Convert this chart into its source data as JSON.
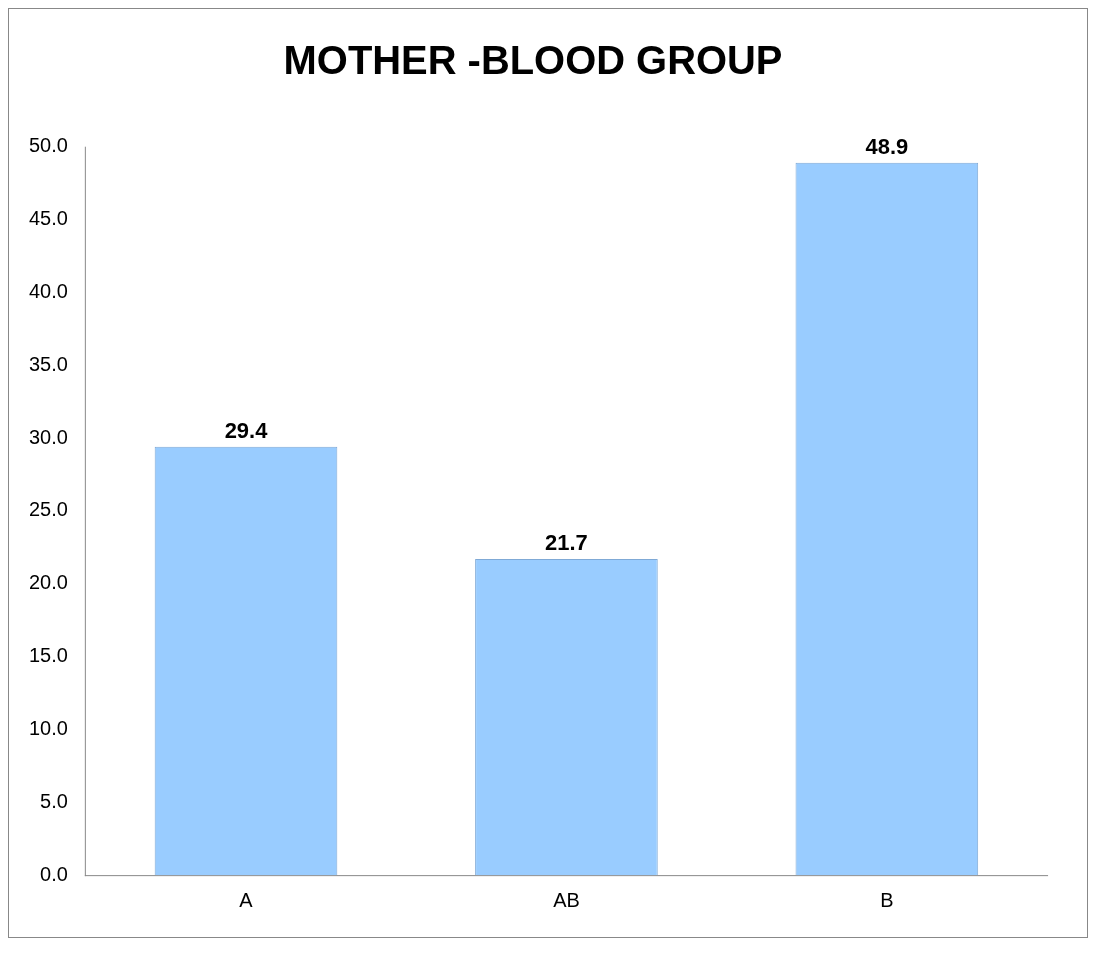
{
  "chart_data": {
    "type": "bar",
    "title": "MOTHER -BLOOD GROUP",
    "categories": [
      "A",
      "AB",
      "B"
    ],
    "values": [
      29.4,
      21.7,
      48.9
    ],
    "color": "#99ccff",
    "ylim": [
      0,
      50
    ],
    "yticks": [
      {
        "value": 0,
        "label": "0.0"
      },
      {
        "value": 5,
        "label": "5.0"
      },
      {
        "value": 10,
        "label": "10.0"
      },
      {
        "value": 15,
        "label": "15.0"
      },
      {
        "value": 20,
        "label": "20.0"
      },
      {
        "value": 25,
        "label": "25.0"
      },
      {
        "value": 30,
        "label": "30.0"
      },
      {
        "value": 35,
        "label": "35.0"
      },
      {
        "value": 40,
        "label": "40.0"
      },
      {
        "value": 45,
        "label": "45.0"
      },
      {
        "value": 50,
        "label": "50.0"
      }
    ],
    "grid": false,
    "legend": false,
    "data_labels": true
  }
}
